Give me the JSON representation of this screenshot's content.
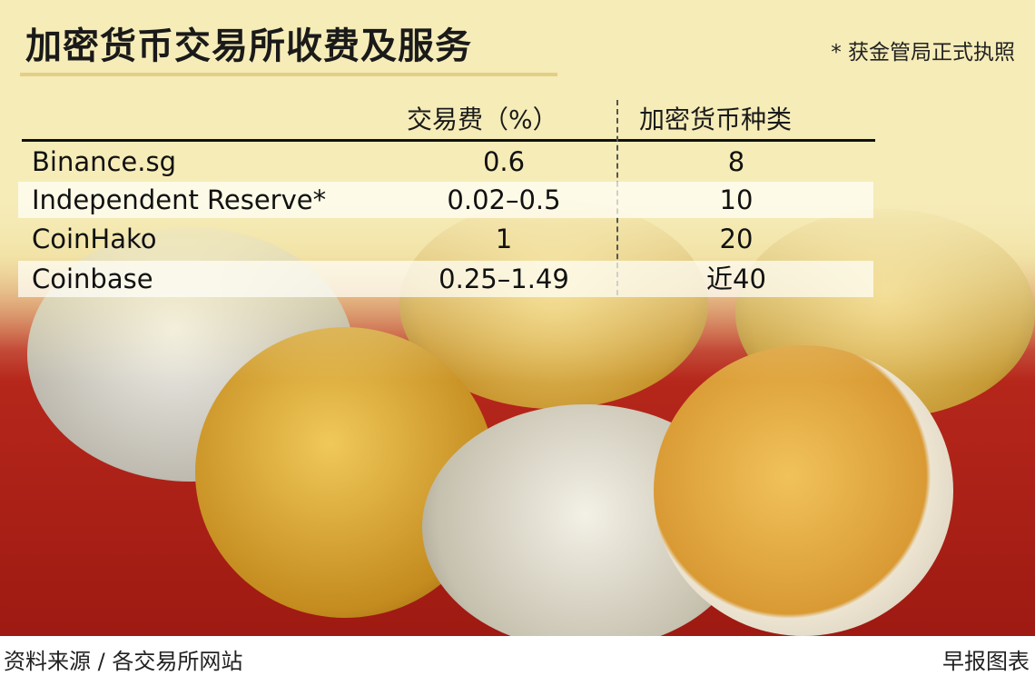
{
  "title": "加密货币交易所收费及服务",
  "note": "* 获金管局正式执照",
  "chart_data": {
    "type": "table",
    "columns": [
      "",
      "交易费（%）",
      "加密货币种类"
    ],
    "rows": [
      {
        "name": "Binance.sg",
        "fee": "0.6",
        "count": "8"
      },
      {
        "name": "Independent Reserve*",
        "fee": "0.02–0.5",
        "count": "10"
      },
      {
        "name": "CoinHako",
        "fee": "1",
        "count": "20"
      },
      {
        "name": "Coinbase",
        "fee": "0.25–1.49",
        "count": "近40"
      }
    ]
  },
  "footer": {
    "source": "资料来源 / 各交易所网站",
    "credit": "早报图表"
  },
  "colors": {
    "background": "#f6ecb8",
    "accent_red": "#b8281c",
    "gold": "#d9b24a"
  }
}
